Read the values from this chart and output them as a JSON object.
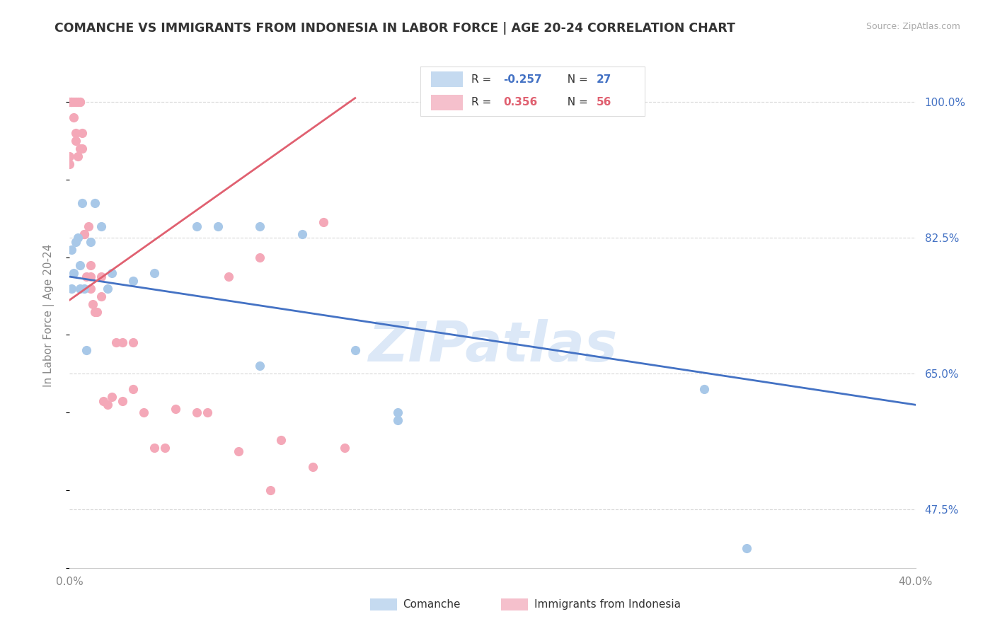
{
  "title": "COMANCHE VS IMMIGRANTS FROM INDONESIA IN LABOR FORCE | AGE 20-24 CORRELATION CHART",
  "source": "Source: ZipAtlas.com",
  "ylabel": "In Labor Force | Age 20-24",
  "xlim": [
    0.0,
    0.4
  ],
  "ylim": [
    0.4,
    1.05
  ],
  "yticks_right": [
    0.475,
    0.65,
    0.825,
    1.0
  ],
  "yticklabels_right": [
    "47.5%",
    "65.0%",
    "82.5%",
    "100.0%"
  ],
  "blue_scatter_color": "#a8c8e8",
  "pink_scatter_color": "#f4a8b8",
  "blue_line_color": "#4472c4",
  "pink_line_color": "#e06070",
  "legend_blue_fill": "#c5daf0",
  "legend_pink_fill": "#f5c0cc",
  "R_blue": -0.257,
  "N_blue": 27,
  "R_pink": 0.356,
  "N_pink": 56,
  "watermark": "ZIPatlas",
  "grid_color": "#d8d8d8",
  "blue_line_x0": 0.0,
  "blue_line_y0": 0.775,
  "blue_line_x1": 0.4,
  "blue_line_y1": 0.61,
  "pink_line_x0": 0.0,
  "pink_line_y0": 0.745,
  "pink_line_x1": 0.135,
  "pink_line_y1": 1.005,
  "blue_points_x": [
    0.001,
    0.001,
    0.002,
    0.003,
    0.004,
    0.005,
    0.005,
    0.006,
    0.007,
    0.008,
    0.01,
    0.012,
    0.015,
    0.018,
    0.02,
    0.03,
    0.04,
    0.06,
    0.07,
    0.09,
    0.11,
    0.135,
    0.155,
    0.09,
    0.155,
    0.3,
    0.32
  ],
  "blue_points_y": [
    0.76,
    0.81,
    0.78,
    0.82,
    0.825,
    0.79,
    0.76,
    0.87,
    0.76,
    0.68,
    0.82,
    0.87,
    0.84,
    0.76,
    0.78,
    0.77,
    0.78,
    0.84,
    0.84,
    0.84,
    0.83,
    0.68,
    0.59,
    0.66,
    0.6,
    0.63,
    0.425
  ],
  "pink_points_x": [
    0.0,
    0.0,
    0.001,
    0.001,
    0.001,
    0.002,
    0.002,
    0.002,
    0.003,
    0.003,
    0.003,
    0.003,
    0.004,
    0.004,
    0.005,
    0.005,
    0.005,
    0.006,
    0.006,
    0.007,
    0.007,
    0.008,
    0.009,
    0.01,
    0.01,
    0.011,
    0.012,
    0.013,
    0.015,
    0.015,
    0.016,
    0.018,
    0.02,
    0.022,
    0.025,
    0.025,
    0.03,
    0.03,
    0.035,
    0.04,
    0.045,
    0.05,
    0.06,
    0.065,
    0.075,
    0.09,
    0.095,
    0.1,
    0.115,
    0.12,
    0.13,
    0.08,
    0.01,
    0.004,
    0.0,
    0.0
  ],
  "pink_points_y": [
    1.0,
    1.0,
    1.0,
    1.0,
    1.0,
    1.0,
    1.0,
    0.98,
    1.0,
    1.0,
    0.96,
    0.95,
    1.0,
    1.0,
    1.0,
    0.94,
    1.0,
    0.96,
    0.94,
    0.83,
    0.83,
    0.775,
    0.84,
    0.775,
    0.79,
    0.74,
    0.73,
    0.73,
    0.775,
    0.75,
    0.615,
    0.61,
    0.62,
    0.69,
    0.69,
    0.615,
    0.69,
    0.63,
    0.6,
    0.555,
    0.555,
    0.605,
    0.6,
    0.6,
    0.775,
    0.8,
    0.5,
    0.565,
    0.53,
    0.845,
    0.555,
    0.55,
    0.76,
    0.93,
    0.93,
    0.92
  ]
}
